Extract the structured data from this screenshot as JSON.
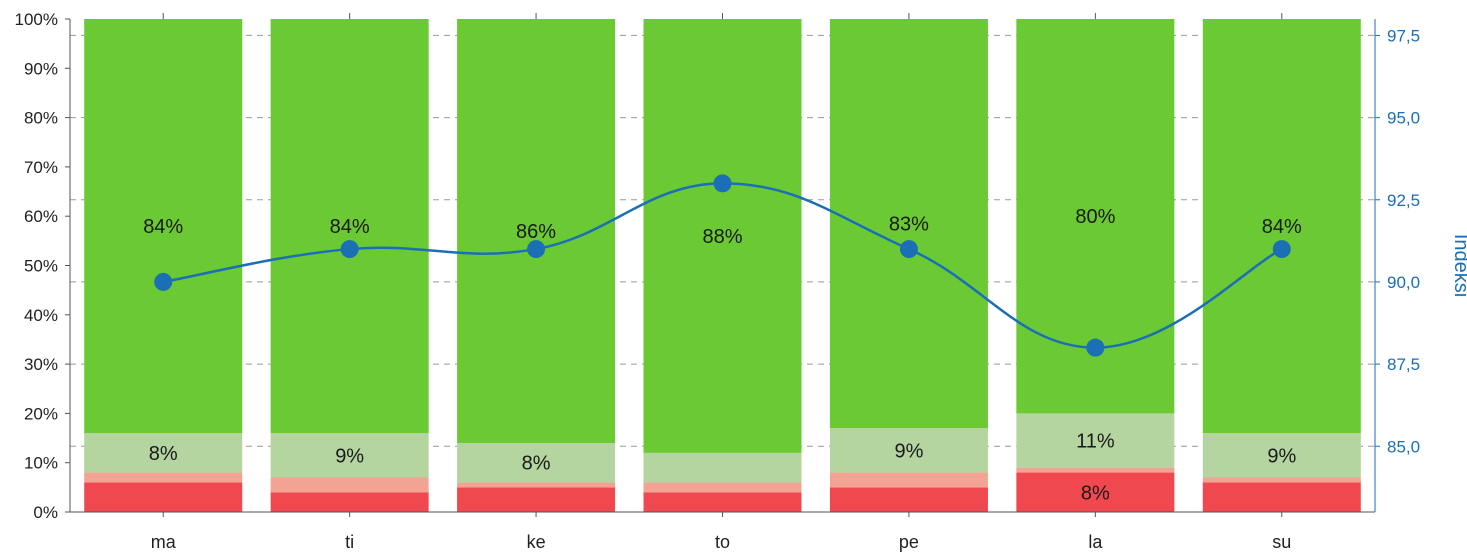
{
  "chart_data": {
    "type": "bar",
    "stacked": true,
    "categories": [
      "ma",
      "ti",
      "ke",
      "to",
      "pe",
      "la",
      "su"
    ],
    "series": [
      {
        "values": [
          6,
          4,
          5,
          4,
          5,
          8,
          6
        ],
        "color": "#f0484f"
      },
      {
        "values": [
          2,
          3,
          1,
          2,
          3,
          1,
          1
        ],
        "color": "#f2a394"
      },
      {
        "values": [
          8,
          9,
          8,
          6,
          9,
          11,
          9
        ],
        "color": "#b4d4a0"
      },
      {
        "values": [
          84,
          84,
          86,
          88,
          83,
          80,
          84
        ],
        "color": "#6bc934"
      }
    ],
    "bar_labels": [
      [
        "",
        "",
        "8%",
        "84%"
      ],
      [
        "",
        "",
        "9%",
        "84%"
      ],
      [
        "",
        "",
        "8%",
        "86%"
      ],
      [
        "",
        "",
        "",
        "88%"
      ],
      [
        "",
        "",
        "9%",
        "83%"
      ],
      [
        "8%",
        "",
        "11%",
        "80%"
      ],
      [
        "",
        "",
        "9%",
        "84%"
      ]
    ],
    "line_series": {
      "values": [
        90.0,
        91.0,
        91.0,
        93.0,
        91.0,
        88.0,
        91.0
      ],
      "color": "#1a6fb5",
      "axis": "right"
    },
    "ylim_left": [
      0,
      100
    ],
    "yticks_left": [
      "0%",
      "10%",
      "20%",
      "30%",
      "40%",
      "50%",
      "60%",
      "70%",
      "80%",
      "90%",
      "100%"
    ],
    "ylim_right": [
      83.0,
      98.0
    ],
    "yticks_right": [
      "85,0",
      "87,5",
      "90,0",
      "92,5",
      "95,0",
      "97,5"
    ],
    "yticks_right_values": [
      85.0,
      87.5,
      90.0,
      92.5,
      95.0,
      97.5
    ],
    "ylabel_right": "Indeksi",
    "xlabel": "",
    "ylabel": "",
    "grid": "dashed horizontal at right-axis ticks",
    "legend": "none"
  }
}
